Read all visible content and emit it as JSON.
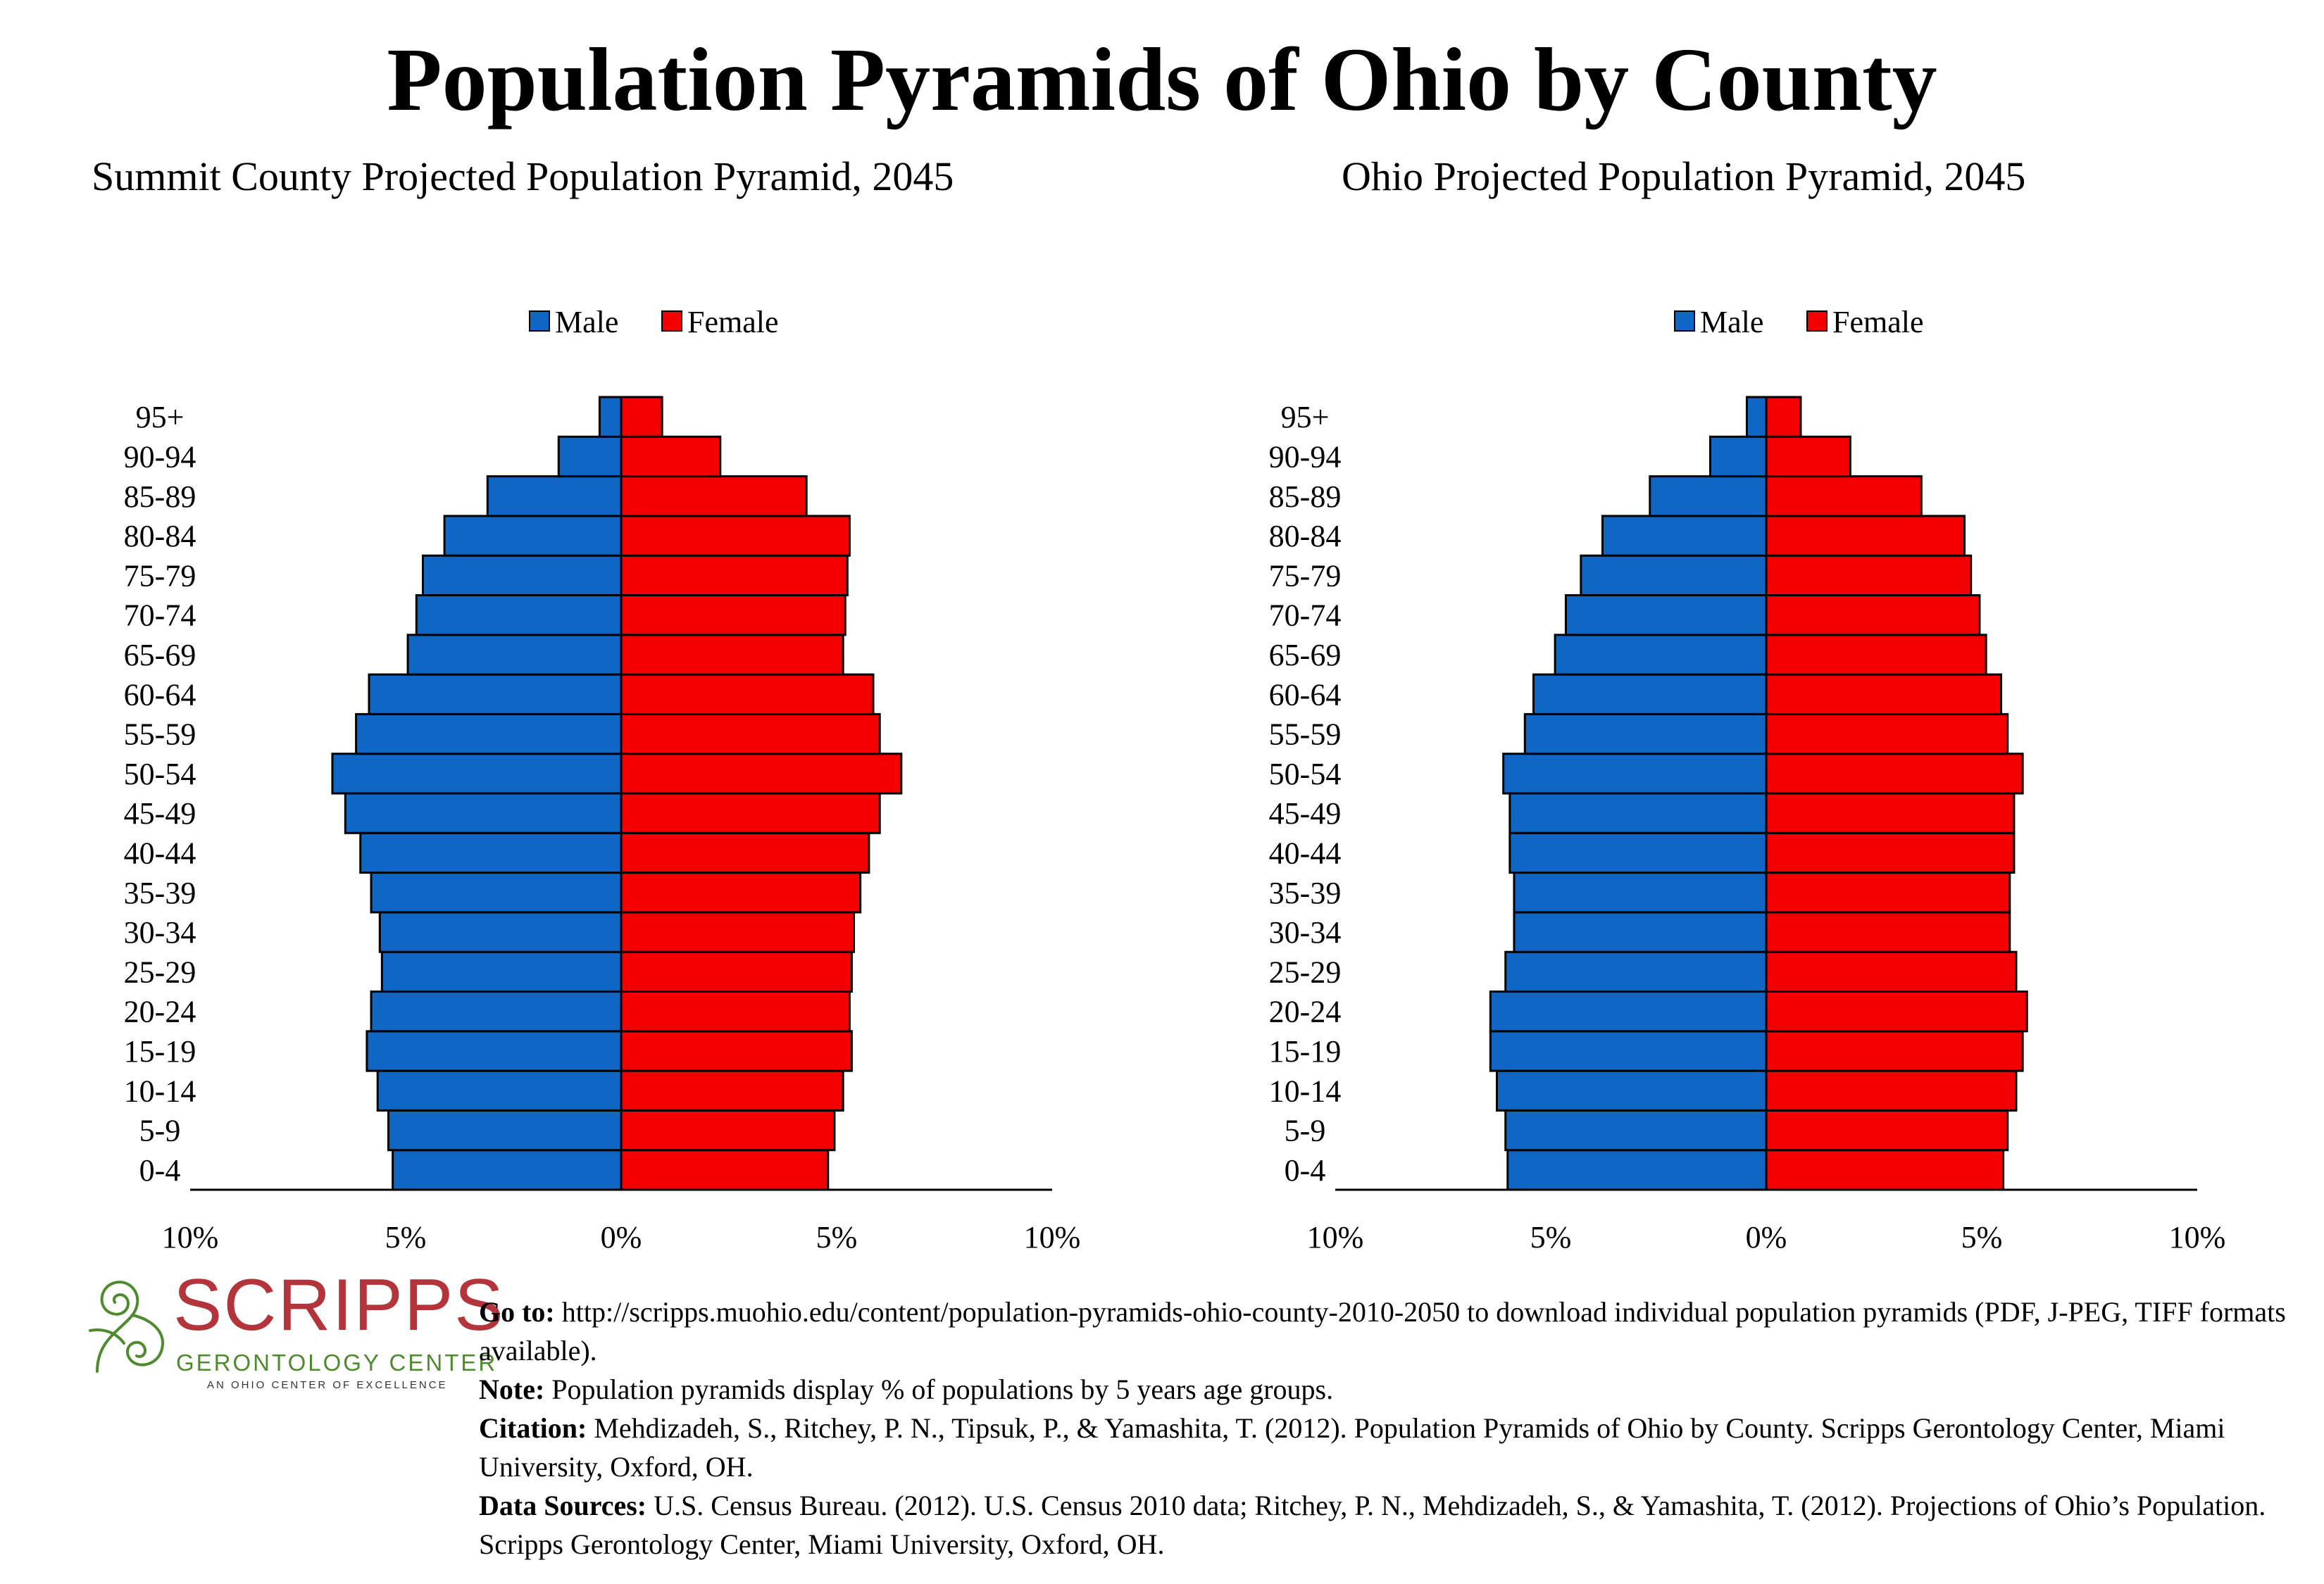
{
  "title": "Population Pyramids of Ohio by County",
  "legend": {
    "male": "Male",
    "female": "Female"
  },
  "colors": {
    "male": "#0f66c4",
    "female": "#f50000",
    "logo_red": "#b3343a",
    "logo_green": "#4e8a2e"
  },
  "logo": {
    "word": "SCRIPPS",
    "sub": "GERONTOLOGY CENTER",
    "tagline": "AN OHIO CENTER OF EXCELLENCE",
    "icon": "spiral-logo-icon"
  },
  "notes": {
    "goto_label": "Go to:",
    "goto_text": " http://scripps.muohio.edu/content/population-pyramids-ohio-county-2010-2050 to download individual population pyramids (PDF, J-PEG, TIFF formats available).",
    "note_label": "Note:",
    "note_text": " Population pyramids display % of populations by 5 years age groups.",
    "citation_label": "Citation:",
    "citation_text": " Mehdizadeh, S., Ritchey, P. N., Tipsuk, P., & Yamashita, T. (2012). Population Pyramids of Ohio by County. Scripps Gerontology Center, Miami University, Oxford, OH.",
    "sources_label": "Data Sources:",
    "sources_text": " U.S. Census Bureau. (2012). U.S. Census 2010 data; Ritchey, P. N., Mehdizadeh, S., & Yamashita, T. (2012). Projections of Ohio’s Population. Scripps Gerontology Center, Miami University, Oxford, OH."
  },
  "chart_data": [
    {
      "type": "bar",
      "orientation": "horizontal-pyramid",
      "title": "Summit County Projected Population Pyramid, 2045",
      "categories": [
        "0-4",
        "5-9",
        "10-14",
        "15-19",
        "20-24",
        "25-29",
        "30-34",
        "35-39",
        "40-44",
        "45-49",
        "50-54",
        "55-59",
        "60-64",
        "65-69",
        "70-74",
        "75-79",
        "80-84",
        "85-89",
        "90-94",
        "95+"
      ],
      "series": [
        {
          "name": "Male",
          "values": [
            5.3,
            5.4,
            5.65,
            5.9,
            5.8,
            5.55,
            5.6,
            5.8,
            6.05,
            6.4,
            6.7,
            6.15,
            5.85,
            4.95,
            4.75,
            4.6,
            4.1,
            3.1,
            1.45,
            0.5
          ]
        },
        {
          "name": "Female",
          "values": [
            4.8,
            4.95,
            5.15,
            5.35,
            5.3,
            5.35,
            5.4,
            5.55,
            5.75,
            6.0,
            6.5,
            6.0,
            5.85,
            5.15,
            5.2,
            5.25,
            5.3,
            4.3,
            2.3,
            0.95
          ]
        }
      ],
      "xticks": [
        "10%",
        "5%",
        "0%",
        "5%",
        "10%"
      ],
      "xlim": [
        -10,
        10
      ],
      "legend": "top-center"
    },
    {
      "type": "bar",
      "orientation": "horizontal-pyramid",
      "title": "Ohio Projected Population Pyramid, 2045",
      "categories": [
        "0-4",
        "5-9",
        "10-14",
        "15-19",
        "20-24",
        "25-29",
        "30-34",
        "35-39",
        "40-44",
        "45-49",
        "50-54",
        "55-59",
        "60-64",
        "65-69",
        "70-74",
        "75-79",
        "80-84",
        "85-89",
        "90-94",
        "95+"
      ],
      "series": [
        {
          "name": "Male",
          "values": [
            6.0,
            6.05,
            6.25,
            6.4,
            6.4,
            6.05,
            5.85,
            5.85,
            5.95,
            5.95,
            6.1,
            5.6,
            5.4,
            4.9,
            4.65,
            4.3,
            3.8,
            2.7,
            1.3,
            0.45
          ]
        },
        {
          "name": "Female",
          "values": [
            5.5,
            5.6,
            5.8,
            5.95,
            6.05,
            5.8,
            5.65,
            5.65,
            5.75,
            5.75,
            5.95,
            5.6,
            5.45,
            5.1,
            4.95,
            4.75,
            4.6,
            3.6,
            1.95,
            0.8
          ]
        }
      ],
      "xticks": [
        "10%",
        "5%",
        "0%",
        "5%",
        "10%"
      ],
      "xlim": [
        -10,
        10
      ],
      "legend": "top-center"
    }
  ]
}
